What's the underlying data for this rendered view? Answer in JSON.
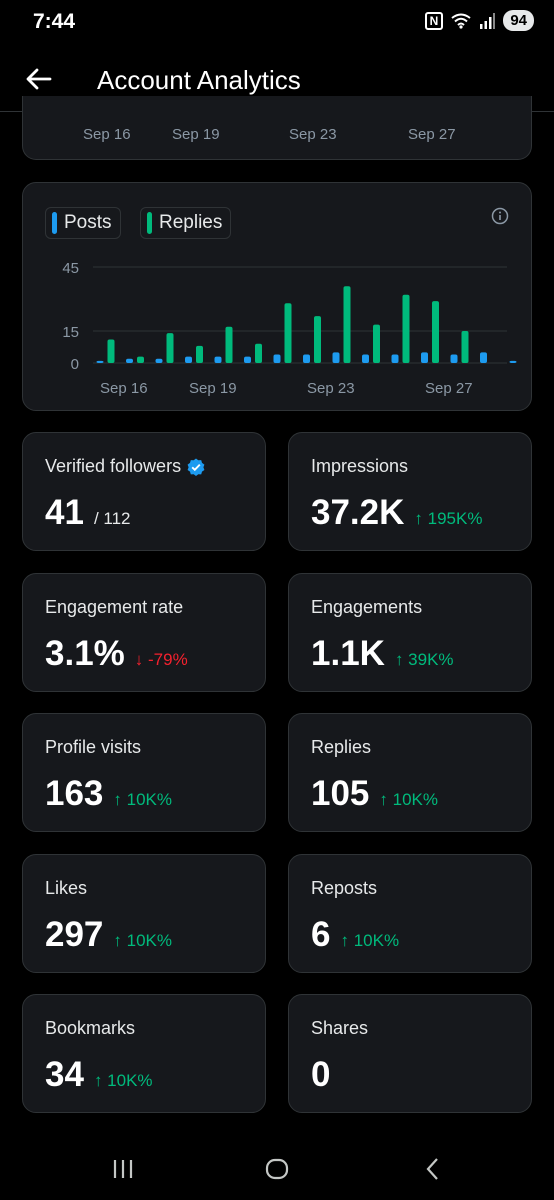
{
  "status_bar": {
    "time": "7:44",
    "nfc": "N",
    "battery": "94"
  },
  "header": {
    "title": "Account Analytics"
  },
  "top_axis": [
    "Sep 16",
    "Sep 19",
    "Sep 23",
    "Sep 27"
  ],
  "legend": {
    "posts": "Posts",
    "replies": "Replies"
  },
  "colors": {
    "posts": "#1d9bf0",
    "replies": "#00ba7c",
    "up": "#00ba7c",
    "down": "#f4212e"
  },
  "chart_data": {
    "type": "bar",
    "ylim": [
      0,
      45
    ],
    "yticks": [
      "45",
      "15",
      "0"
    ],
    "xtick_labels": [
      "Sep 16",
      "Sep 19",
      "Sep 23",
      "Sep 27"
    ],
    "series": [
      {
        "name": "Posts",
        "values": [
          1,
          2,
          2,
          3,
          3,
          3,
          4,
          4,
          5,
          4,
          4,
          5,
          4,
          5,
          1
        ]
      },
      {
        "name": "Replies",
        "values": [
          11,
          3,
          14,
          8,
          17,
          9,
          28,
          22,
          36,
          18,
          32,
          29,
          15,
          0,
          0
        ]
      }
    ]
  },
  "stats": [
    {
      "label": "Verified followers",
      "value": "41",
      "sub": "/ 112",
      "change": "",
      "dir": ""
    },
    {
      "label": "Impressions",
      "value": "37.2K",
      "sub": "",
      "change": "↑ 195K%",
      "dir": "up"
    },
    {
      "label": "Engagement rate",
      "value": "3.1%",
      "sub": "",
      "change": "↓ -79%",
      "dir": "down"
    },
    {
      "label": "Engagements",
      "value": "1.1K",
      "sub": "",
      "change": "↑ 39K%",
      "dir": "up"
    },
    {
      "label": "Profile visits",
      "value": "163",
      "sub": "",
      "change": "↑ 10K%",
      "dir": "up"
    },
    {
      "label": "Replies",
      "value": "105",
      "sub": "",
      "change": "↑ 10K%",
      "dir": "up"
    },
    {
      "label": "Likes",
      "value": "297",
      "sub": "",
      "change": "↑ 10K%",
      "dir": "up"
    },
    {
      "label": "Reposts",
      "value": "6",
      "sub": "",
      "change": "↑ 10K%",
      "dir": "up"
    },
    {
      "label": "Bookmarks",
      "value": "34",
      "sub": "",
      "change": "↑ 10K%",
      "dir": "up"
    },
    {
      "label": "Shares",
      "value": "0",
      "sub": "",
      "change": "",
      "dir": ""
    }
  ]
}
